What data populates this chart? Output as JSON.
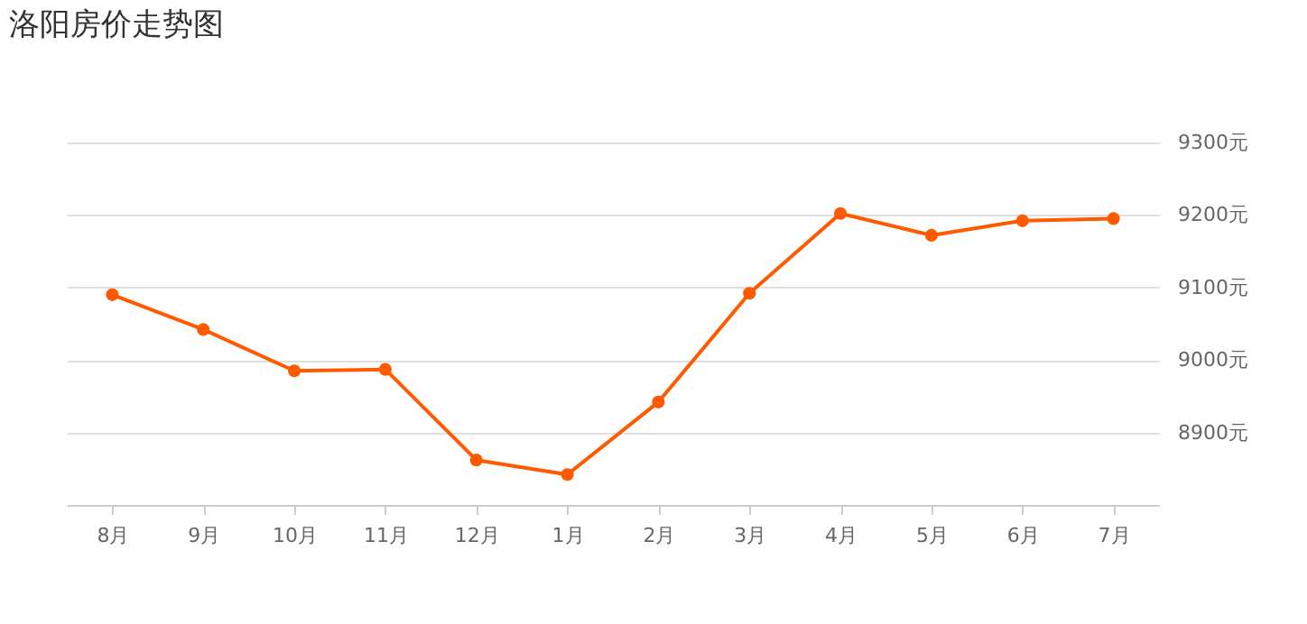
{
  "chart_data": {
    "type": "line",
    "title": "洛阳房价走势图",
    "categories": [
      "8月",
      "9月",
      "10月",
      "11月",
      "12月",
      "1月",
      "2月",
      "3月",
      "4月",
      "5月",
      "6月",
      "7月"
    ],
    "series": [
      {
        "color": "#ff5a00",
        "values": [
          9090,
          9042,
          8985,
          8987,
          8862,
          8842,
          8942,
          9092,
          9202,
          9172,
          9192,
          9195
        ]
      }
    ],
    "ylim": [
      8800,
      9300
    ],
    "yticks": [
      {
        "value": 8900,
        "label": "8900元"
      },
      {
        "value": 9000,
        "label": "9000元"
      },
      {
        "value": 9100,
        "label": "9100元"
      },
      {
        "value": 9200,
        "label": "9200元"
      },
      {
        "value": 9300,
        "label": "9300元"
      }
    ],
    "grid": "y",
    "marker": "circle"
  }
}
